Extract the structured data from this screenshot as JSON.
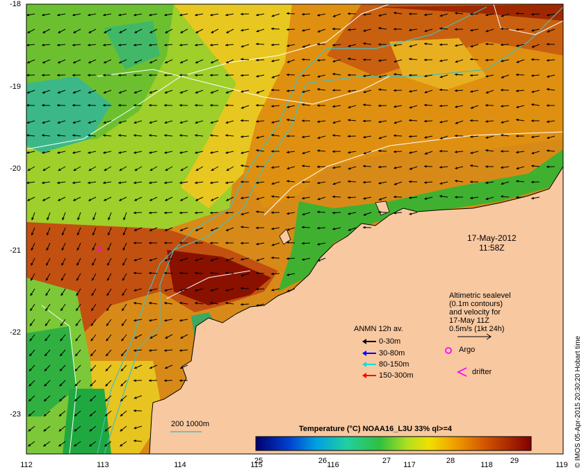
{
  "map": {
    "lat_ticks": [
      "-18",
      "-19",
      "-20",
      "-21",
      "-22",
      "-23"
    ],
    "lon_ticks": [
      "112",
      "113",
      "114",
      "115",
      "116",
      "117",
      "118",
      "119"
    ],
    "timestamp_date": "17-May-2012",
    "timestamp_time": "11:58Z",
    "credit": "© IMOS 05-Apr-2015 20:30:20 Hobart time",
    "argo_float": {
      "lon": 112.95,
      "lat": -21.0
    },
    "land_color": "#f8c8a0"
  },
  "altimetry_legend": {
    "lines": [
      "Altimetric sealevel",
      "(0.1m contours)",
      "and velocity for",
      "17-May 11Z",
      "0.5m/s (1kt 24h)"
    ]
  },
  "anmn_legend": {
    "title": "ANMN 12h av.",
    "items": [
      {
        "label": "0-30m",
        "color": "#000000"
      },
      {
        "label": "30-80m",
        "color": "#0000ff"
      },
      {
        "label": "80-150m",
        "color": "#00e0e0"
      },
      {
        "label": "150-300m",
        "color": "#ff0000"
      }
    ]
  },
  "markers": {
    "argo": "Argo",
    "drifter": "drifter"
  },
  "colorbar": {
    "title": "Temperature (°C) NOAA16_L3U 33% ql>=4",
    "min": 25,
    "max": 29.3,
    "ticks": [
      "25",
      "26",
      "27",
      "28",
      "29"
    ]
  },
  "depth_contours": {
    "label": "200  1000m",
    "color": "#40c0c0"
  }
}
